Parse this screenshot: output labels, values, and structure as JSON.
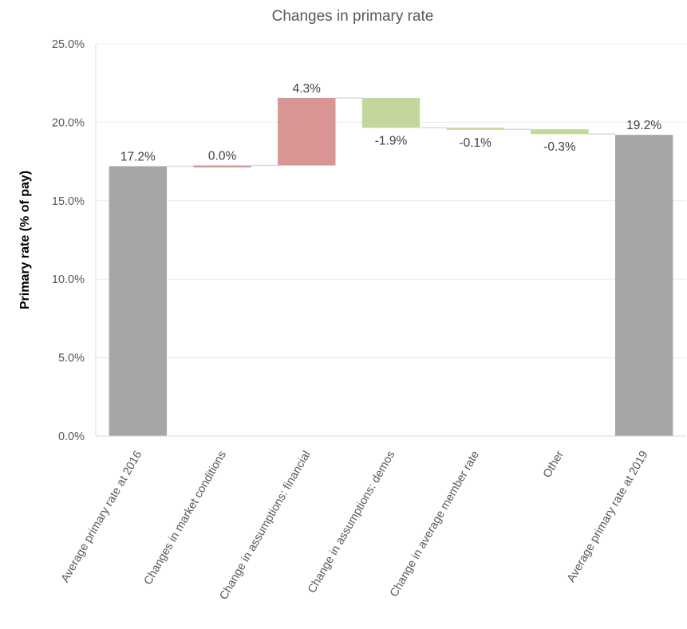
{
  "chart_data": {
    "type": "bar",
    "subtype": "waterfall",
    "title": "Changes in primary rate",
    "ylabel": "Primary rate (% of pay)",
    "xlabel": "",
    "ylim": [
      0,
      25
    ],
    "yticks": [
      "0.0%",
      "5.0%",
      "10.0%",
      "15.0%",
      "20.0%",
      "25.0%"
    ],
    "grid": true,
    "categories": [
      "Average primary rate at 2016",
      "Changes in market conditions",
      "Change in assumptions: financial",
      "Change in assumptions: demos",
      "Change in average member rate",
      "Other",
      "Average primary rate at 2019"
    ],
    "values": [
      17.2,
      0.05,
      4.3,
      -1.9,
      -0.1,
      -0.3,
      19.2
    ],
    "kinds": [
      "total",
      "delta",
      "delta",
      "delta",
      "delta",
      "delta",
      "total"
    ],
    "data_labels": [
      "17.2%",
      "0.0%",
      "4.3%",
      "-1.9%",
      "-0.1%",
      "-0.3%",
      "19.2%"
    ],
    "colors": {
      "total": "#a6a6a6",
      "increase": "#d99594",
      "decrease": "#c3d69b",
      "grid": "#ececec",
      "connector": "#d9d9d9",
      "axis": "#d9d9d9"
    }
  }
}
